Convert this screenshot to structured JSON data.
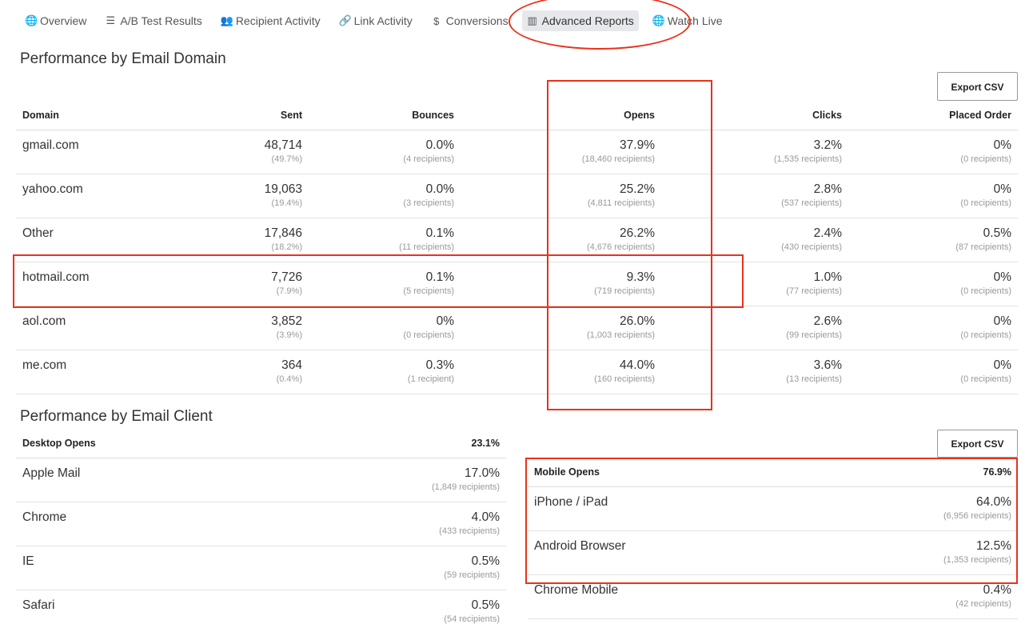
{
  "nav": {
    "items": [
      {
        "label": "Overview",
        "icon": "globe-icon",
        "glyph": "🌐"
      },
      {
        "label": "A/B Test Results",
        "icon": "list-icon",
        "glyph": "☰"
      },
      {
        "label": "Recipient Activity",
        "icon": "users-icon",
        "glyph": "👥"
      },
      {
        "label": "Link Activity",
        "icon": "link-icon",
        "glyph": "🔗"
      },
      {
        "label": "Conversions",
        "icon": "dollar-icon",
        "glyph": "$"
      },
      {
        "label": "Advanced Reports",
        "icon": "bar-chart-icon",
        "glyph": "▥"
      },
      {
        "label": "Watch Live",
        "icon": "globe-icon",
        "glyph": "🌐"
      }
    ],
    "active_index": 5
  },
  "domain_section": {
    "title": "Performance by Email Domain",
    "export_label": "Export CSV",
    "columns": [
      "Domain",
      "Sent",
      "Bounces",
      "Opens",
      "Clicks",
      "Placed Order"
    ],
    "rows": [
      {
        "domain": "gmail.com",
        "sent": "48,714",
        "sent_pct": "(49.7%)",
        "bounces": "0.0%",
        "bounces_sub": "(4 recipients)",
        "opens": "37.9%",
        "opens_sub": "(18,460 recipients)",
        "clicks": "3.2%",
        "clicks_sub": "(1,535 recipients)",
        "orders": "0%",
        "orders_sub": "(0 recipients)"
      },
      {
        "domain": "yahoo.com",
        "sent": "19,063",
        "sent_pct": "(19.4%)",
        "bounces": "0.0%",
        "bounces_sub": "(3 recipients)",
        "opens": "25.2%",
        "opens_sub": "(4,811 recipients)",
        "clicks": "2.8%",
        "clicks_sub": "(537 recipients)",
        "orders": "0%",
        "orders_sub": "(0 recipients)"
      },
      {
        "domain": "Other",
        "sent": "17,846",
        "sent_pct": "(18.2%)",
        "bounces": "0.1%",
        "bounces_sub": "(11 recipients)",
        "opens": "26.2%",
        "opens_sub": "(4,676 recipients)",
        "clicks": "2.4%",
        "clicks_sub": "(430 recipients)",
        "orders": "0.5%",
        "orders_sub": "(87 recipients)"
      },
      {
        "domain": "hotmail.com",
        "sent": "7,726",
        "sent_pct": "(7.9%)",
        "bounces": "0.1%",
        "bounces_sub": "(5 recipients)",
        "opens": "9.3%",
        "opens_sub": "(719 recipients)",
        "clicks": "1.0%",
        "clicks_sub": "(77 recipients)",
        "orders": "0%",
        "orders_sub": "(0 recipients)"
      },
      {
        "domain": "aol.com",
        "sent": "3,852",
        "sent_pct": "(3.9%)",
        "bounces": "0%",
        "bounces_sub": "(0 recipients)",
        "opens": "26.0%",
        "opens_sub": "(1,003 recipients)",
        "clicks": "2.6%",
        "clicks_sub": "(99 recipients)",
        "orders": "0%",
        "orders_sub": "(0 recipients)"
      },
      {
        "domain": "me.com",
        "sent": "364",
        "sent_pct": "(0.4%)",
        "bounces": "0.3%",
        "bounces_sub": "(1 recipient)",
        "opens": "44.0%",
        "opens_sub": "(160 recipients)",
        "clicks": "3.6%",
        "clicks_sub": "(13 recipients)",
        "orders": "0%",
        "orders_sub": "(0 recipients)"
      }
    ]
  },
  "client_section": {
    "title": "Performance by Email Client",
    "export_label": "Export CSV",
    "desktop": {
      "header": "Desktop Opens",
      "total": "23.1%",
      "rows": [
        {
          "name": "Apple Mail",
          "pct": "17.0%",
          "sub": "(1,849 recipients)"
        },
        {
          "name": "Chrome",
          "pct": "4.0%",
          "sub": "(433 recipients)"
        },
        {
          "name": "IE",
          "pct": "0.5%",
          "sub": "(59 recipients)"
        },
        {
          "name": "Safari",
          "pct": "0.5%",
          "sub": "(54 recipients)"
        }
      ]
    },
    "mobile": {
      "header": "Mobile Opens",
      "total": "76.9%",
      "rows": [
        {
          "name": "iPhone / iPad",
          "pct": "64.0%",
          "sub": "(6,956 recipients)"
        },
        {
          "name": "Android Browser",
          "pct": "12.5%",
          "sub": "(1,353 recipients)"
        },
        {
          "name": "Chrome Mobile",
          "pct": "0.4%",
          "sub": "(42 recipients)"
        }
      ]
    }
  },
  "annotation_color": "#e8321b"
}
